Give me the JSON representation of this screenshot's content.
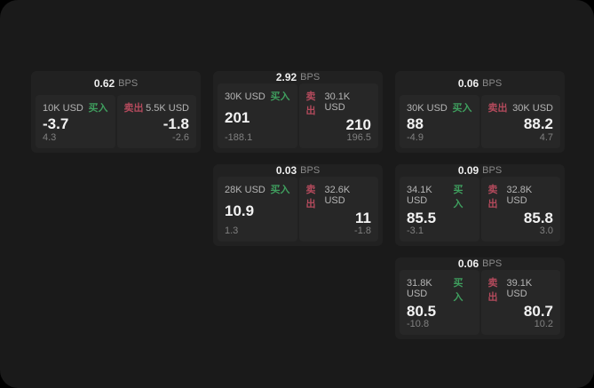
{
  "labels": {
    "bps_unit": "BPS",
    "buy": "买入",
    "sell": "卖出"
  },
  "colors": {
    "window_bg": "#1a1a1a",
    "card_bg": "#212121",
    "tile_bg": "#272727",
    "buy_green": "#3f9e5e",
    "sell_red": "#b34a5c"
  },
  "cards": [
    {
      "bps": "0.62",
      "buy": {
        "amount": "10K USD",
        "value": "-3.7",
        "delta": "4.3"
      },
      "sell": {
        "amount": "5.5K USD",
        "value": "-1.8",
        "delta": "-2.6"
      }
    },
    {
      "bps": "2.92",
      "buy": {
        "amount": "30K USD",
        "value": "201",
        "delta": "-188.1"
      },
      "sell": {
        "amount": "30.1K USD",
        "value": "210",
        "delta": "196.5"
      }
    },
    {
      "bps": "0.06",
      "buy": {
        "amount": "30K USD",
        "value": "88",
        "delta": "-4.9"
      },
      "sell": {
        "amount": "30K USD",
        "value": "88.2",
        "delta": "4.7"
      }
    },
    {
      "bps": "0.03",
      "buy": {
        "amount": "28K USD",
        "value": "10.9",
        "delta": "1.3"
      },
      "sell": {
        "amount": "32.6K USD",
        "value": "11",
        "delta": "-1.8"
      }
    },
    {
      "bps": "0.09",
      "buy": {
        "amount": "34.1K USD",
        "value": "85.5",
        "delta": "-3.1"
      },
      "sell": {
        "amount": "32.8K USD",
        "value": "85.8",
        "delta": "3.0"
      }
    },
    {
      "bps": "0.06",
      "buy": {
        "amount": "31.8K USD",
        "value": "80.5",
        "delta": "-10.8"
      },
      "sell": {
        "amount": "39.1K USD",
        "value": "80.7",
        "delta": "10.2"
      }
    }
  ]
}
